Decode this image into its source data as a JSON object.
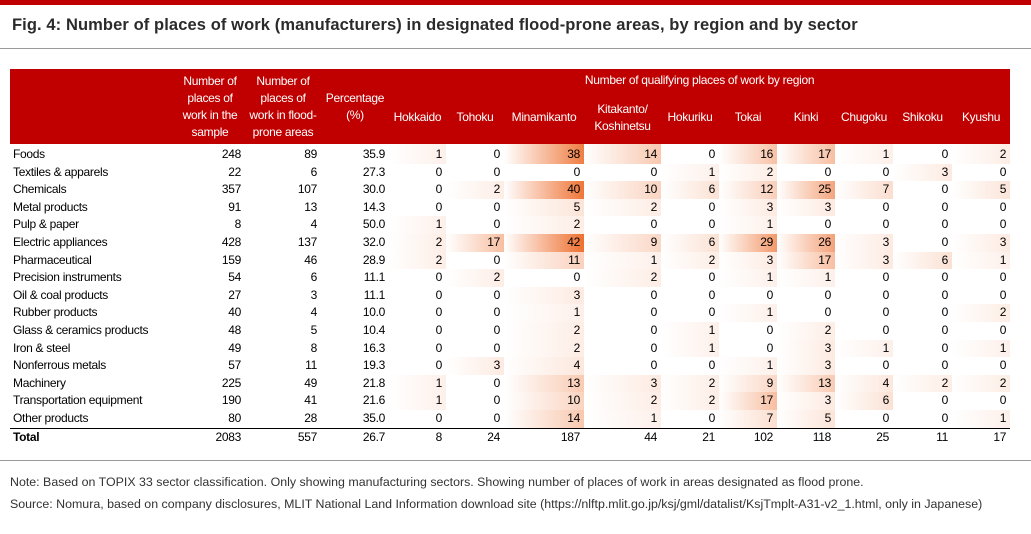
{
  "title": "Fig. 4: Number of places of work (manufacturers) in designated flood-prone areas, by region and by sector",
  "headers": {
    "sector": "",
    "sample": "Number of places of work in the sample",
    "flood": "Number of places of work in flood-prone areas",
    "pct": "Percentage (%)",
    "regions_group": "Number of qualifying places of work by region",
    "regions": [
      "Hokkaido",
      "Tohoku",
      "Minamikanto",
      "Kitakanto/ Koshinetsu",
      "Hokuriku",
      "Tokai",
      "Kinki",
      "Chugoku",
      "Shikoku",
      "Kyushu"
    ]
  },
  "rows": [
    {
      "sector": "Foods",
      "sample": "248",
      "flood": "89",
      "pct": "35.9",
      "regions": [
        "1",
        "0",
        "38",
        "14",
        "0",
        "16",
        "17",
        "1",
        "0",
        "2"
      ]
    },
    {
      "sector": "Textiles & apparels",
      "sample": "22",
      "flood": "6",
      "pct": "27.3",
      "regions": [
        "0",
        "0",
        "0",
        "0",
        "1",
        "2",
        "0",
        "0",
        "3",
        "0"
      ]
    },
    {
      "sector": "Chemicals",
      "sample": "357",
      "flood": "107",
      "pct": "30.0",
      "regions": [
        "0",
        "2",
        "40",
        "10",
        "6",
        "12",
        "25",
        "7",
        "0",
        "5"
      ]
    },
    {
      "sector": "Metal products",
      "sample": "91",
      "flood": "13",
      "pct": "14.3",
      "regions": [
        "0",
        "0",
        "5",
        "2",
        "0",
        "3",
        "3",
        "0",
        "0",
        "0"
      ]
    },
    {
      "sector": "Pulp & paper",
      "sample": "8",
      "flood": "4",
      "pct": "50.0",
      "regions": [
        "1",
        "0",
        "2",
        "0",
        "0",
        "1",
        "0",
        "0",
        "0",
        "0"
      ]
    },
    {
      "sector": "Electric appliances",
      "sample": "428",
      "flood": "137",
      "pct": "32.0",
      "regions": [
        "2",
        "17",
        "42",
        "9",
        "6",
        "29",
        "26",
        "3",
        "0",
        "3"
      ]
    },
    {
      "sector": "Pharmaceutical",
      "sample": "159",
      "flood": "46",
      "pct": "28.9",
      "regions": [
        "2",
        "0",
        "11",
        "1",
        "2",
        "3",
        "17",
        "3",
        "6",
        "1"
      ]
    },
    {
      "sector": "Precision instruments",
      "sample": "54",
      "flood": "6",
      "pct": "11.1",
      "regions": [
        "0",
        "2",
        "0",
        "2",
        "0",
        "1",
        "1",
        "0",
        "0",
        "0"
      ]
    },
    {
      "sector": "Oil & coal products",
      "sample": "27",
      "flood": "3",
      "pct": "11.1",
      "regions": [
        "0",
        "0",
        "3",
        "0",
        "0",
        "0",
        "0",
        "0",
        "0",
        "0"
      ]
    },
    {
      "sector": "Rubber products",
      "sample": "40",
      "flood": "4",
      "pct": "10.0",
      "regions": [
        "0",
        "0",
        "1",
        "0",
        "0",
        "1",
        "0",
        "0",
        "0",
        "2"
      ]
    },
    {
      "sector": "Glass & ceramics products",
      "sample": "48",
      "flood": "5",
      "pct": "10.4",
      "regions": [
        "0",
        "0",
        "2",
        "0",
        "1",
        "0",
        "2",
        "0",
        "0",
        "0"
      ]
    },
    {
      "sector": "Iron & steel",
      "sample": "49",
      "flood": "8",
      "pct": "16.3",
      "regions": [
        "0",
        "0",
        "2",
        "0",
        "1",
        "0",
        "3",
        "1",
        "0",
        "1"
      ]
    },
    {
      "sector": "Nonferrous metals",
      "sample": "57",
      "flood": "11",
      "pct": "19.3",
      "regions": [
        "0",
        "3",
        "4",
        "0",
        "0",
        "1",
        "3",
        "0",
        "0",
        "0"
      ]
    },
    {
      "sector": "Machinery",
      "sample": "225",
      "flood": "49",
      "pct": "21.8",
      "regions": [
        "1",
        "0",
        "13",
        "3",
        "2",
        "9",
        "13",
        "4",
        "2",
        "2"
      ]
    },
    {
      "sector": "Transportation equipment",
      "sample": "190",
      "flood": "41",
      "pct": "21.6",
      "regions": [
        "1",
        "0",
        "10",
        "2",
        "2",
        "17",
        "3",
        "6",
        "0",
        "0"
      ]
    },
    {
      "sector": "Other products",
      "sample": "80",
      "flood": "28",
      "pct": "35.0",
      "regions": [
        "0",
        "0",
        "14",
        "1",
        "0",
        "7",
        "5",
        "0",
        "0",
        "1"
      ]
    },
    {
      "sector": "Total",
      "sample": "2083",
      "flood": "557",
      "pct": "26.7",
      "regions": [
        "8",
        "24",
        "187",
        "44",
        "21",
        "102",
        "118",
        "25",
        "11",
        "17"
      ]
    }
  ],
  "heat_color": "#ee7030",
  "heat_max": 42,
  "note": "Note: Based on TOPIX 33 sector classification. Only showing manufacturing sectors. Showing number of places of work in areas designated as flood prone.",
  "source": "Source: Nomura, based on company disclosures, MLIT National Land Information download site (https://nlftp.mlit.go.jp/ksj/gml/datalist/KsjTmplt-A31-v2_1.html, only in Japanese)"
}
